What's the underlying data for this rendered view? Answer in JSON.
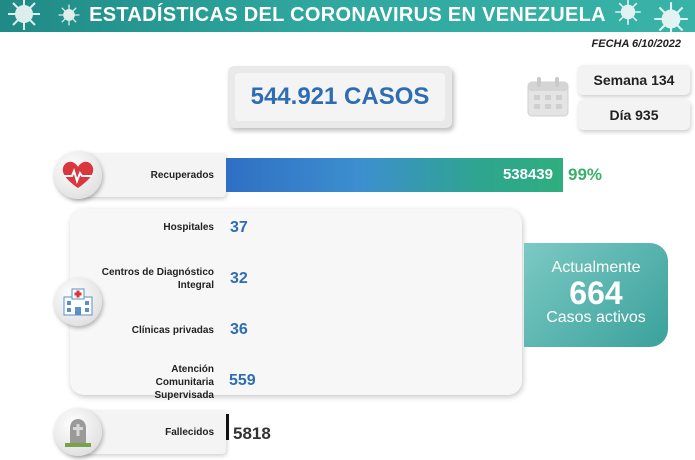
{
  "header": {
    "title": "ESTADÍSTICAS DEL CORONAVIRUS EN VENEZUELA",
    "date": "FECHA 6/10/2022"
  },
  "total": {
    "label": "544.921 CASOS"
  },
  "period": {
    "week": "Semana 134",
    "day": "Día 935"
  },
  "recovered": {
    "label": "Recuperados",
    "value": "538439",
    "percent": "99%",
    "fraction": 0.99
  },
  "active_breakdown": {
    "hospitals": {
      "label": "Hospitales",
      "value": "37"
    },
    "cdi": {
      "label": "Centros de Diagnóstico Integral",
      "value": "32"
    },
    "clinics": {
      "label": "Clínicas privadas",
      "value": "36"
    },
    "community": {
      "label": "Atención Comunitaria Supervisada",
      "value": "559"
    }
  },
  "active": {
    "top": "Actualmente",
    "value": "664",
    "bottom": "Casos activos"
  },
  "deceased": {
    "label": "Fallecidos",
    "value": "5818"
  },
  "colors": {
    "banner": "#2fa79f",
    "blue": "#2e6db3",
    "green": "#3bb06a",
    "active": "#3aa19b"
  },
  "icons": [
    "virus-icon",
    "calendar-icon",
    "heart-icon",
    "hospital-icon",
    "tombstone-icon"
  ]
}
